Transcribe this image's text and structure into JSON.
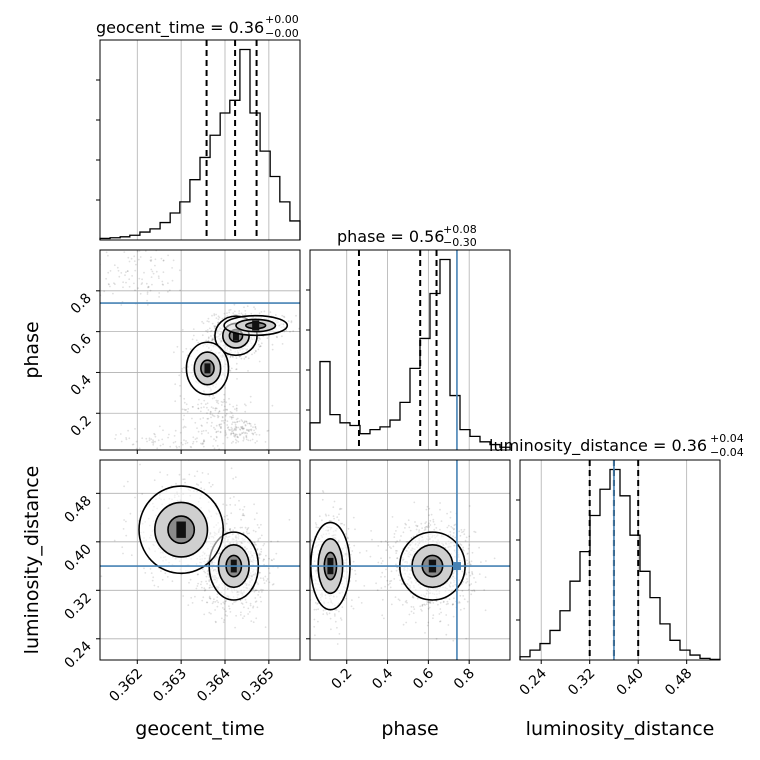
{
  "chart_data": {
    "type": "corner",
    "parameters": [
      "geocent_time",
      "phase",
      "luminosity_distance"
    ],
    "titles": [
      {
        "param": "geocent_time",
        "prefix": "geocent_time = ",
        "median": "0.36",
        "plus": "+0.00",
        "minus": "−0.00"
      },
      {
        "param": "phase",
        "prefix": "phase = ",
        "median": "0.56",
        "plus": "+0.08",
        "minus": "−0.30"
      },
      {
        "param": "luminosity_distance",
        "prefix": "luminosity_distance = ",
        "median": "0.36",
        "plus": "+0.04",
        "minus": "−0.04"
      }
    ],
    "axis_labels": {
      "x": [
        "geocent_time",
        "phase",
        "luminosity_distance"
      ],
      "y": [
        "phase",
        "luminosity_distance"
      ]
    },
    "ranges": {
      "geocent_time": [
        0.36115,
        0.36571
      ],
      "phase": [
        0.02,
        1.0
      ],
      "luminosity_distance": [
        0.205,
        0.535
      ]
    },
    "ticks": {
      "geocent_time": [
        0.362,
        0.363,
        0.364,
        0.365
      ],
      "phase": [
        0.2,
        0.4,
        0.6,
        0.8
      ],
      "luminosity_distance": [
        0.24,
        0.32,
        0.4,
        0.48
      ]
    },
    "tick_labels": {
      "geocent_time": [
        "0.362",
        "0.363",
        "0.364",
        "0.365"
      ],
      "phase_x": [
        "0.2",
        "0.4",
        "0.6",
        "0.8"
      ],
      "phase_y": [
        "0.2",
        "0.4",
        "0.6",
        "0.8"
      ],
      "luminosity_distance_x": [
        "0.24",
        "0.32",
        "0.40",
        "0.48"
      ],
      "luminosity_distance_y": [
        "0.24",
        "0.32",
        "0.40",
        "0.48"
      ]
    },
    "truths": {
      "phase": 0.74,
      "luminosity_distance": 0.36
    },
    "quantiles": {
      "geocent_time": [
        0.36358,
        0.36423,
        0.36472
      ],
      "phase": [
        0.26,
        0.56,
        0.64
      ],
      "luminosity_distance": [
        0.32,
        0.36,
        0.4
      ]
    },
    "histograms": {
      "geocent_time": {
        "edges": [
          0.36115,
          0.36138,
          0.36161,
          0.36183,
          0.36206,
          0.36229,
          0.36252,
          0.36275,
          0.36297,
          0.3632,
          0.36343,
          0.36366,
          0.36389,
          0.36411,
          0.36434,
          0.36457,
          0.3648,
          0.36503,
          0.36525,
          0.36548,
          0.36571
        ],
        "counts": [
          0.5,
          0.7,
          1.0,
          1.5,
          2.5,
          3.5,
          5.5,
          8.5,
          12,
          19,
          26,
          33,
          40,
          44,
          60,
          40,
          28,
          20,
          12,
          6
        ]
      },
      "phase": {
        "edges": [
          0.02,
          0.069,
          0.118,
          0.167,
          0.216,
          0.265,
          0.314,
          0.363,
          0.412,
          0.461,
          0.51,
          0.559,
          0.608,
          0.657,
          0.706,
          0.755,
          0.804,
          0.853,
          0.902,
          0.951,
          1.0
        ],
        "counts": [
          2,
          6.5,
          2.6,
          2.0,
          1.8,
          1.2,
          1.5,
          1.7,
          2.2,
          3.5,
          6.0,
          8.2,
          11.5,
          14.0,
          4.0,
          1.5,
          1.0,
          0.6,
          0.4,
          0.2
        ]
      },
      "luminosity_distance": {
        "edges": [
          0.205,
          0.2215,
          0.238,
          0.2545,
          0.271,
          0.2875,
          0.304,
          0.3205,
          0.337,
          0.3535,
          0.37,
          0.3865,
          0.403,
          0.4195,
          0.436,
          0.4525,
          0.469,
          0.4855,
          0.502,
          0.5185,
          0.535
        ],
        "counts": [
          1,
          3,
          5,
          9,
          15,
          24,
          33,
          44,
          52,
          58,
          50,
          38,
          27,
          19,
          11,
          6,
          3,
          1.5,
          0.5,
          0.2
        ]
      }
    },
    "posterior_clusters": {
      "geocent_time_vs_phase": [
        {
          "x": 0.36425,
          "y": 0.58,
          "sx": 0.0003,
          "sy": 0.06,
          "weight": 0.4
        },
        {
          "x": 0.3647,
          "y": 0.63,
          "sx": 0.00045,
          "sy": 0.03,
          "weight": 0.15
        },
        {
          "x": 0.3636,
          "y": 0.42,
          "sx": 0.0003,
          "sy": 0.08,
          "weight": 0.12
        },
        {
          "x": 0.3643,
          "y": 0.12,
          "sx": 0.0003,
          "sy": 0.03,
          "weight": 0.1
        },
        {
          "x": 0.362,
          "y": 0.88,
          "sx": 0.0006,
          "sy": 0.07,
          "weight": 0.08
        },
        {
          "x": 0.3638,
          "y": 0.22,
          "sx": 0.0004,
          "sy": 0.04,
          "weight": 0.07
        },
        {
          "x": 0.3629,
          "y": 0.06,
          "sx": 0.0009,
          "sy": 0.03,
          "weight": 0.08
        }
      ],
      "geocent_time_vs_luminosity_distance": [
        {
          "x": 0.3642,
          "y": 0.36,
          "sx": 0.00035,
          "sy": 0.035,
          "weight": 0.7
        },
        {
          "x": 0.363,
          "y": 0.42,
          "sx": 0.0006,
          "sy": 0.045,
          "weight": 0.3
        }
      ],
      "phase_vs_luminosity_distance": [
        {
          "x": 0.62,
          "y": 0.36,
          "sx": 0.1,
          "sy": 0.035,
          "weight": 0.7
        },
        {
          "x": 0.12,
          "y": 0.36,
          "sx": 0.06,
          "sy": 0.045,
          "weight": 0.3
        }
      ]
    },
    "colors": {
      "line": "#000000",
      "truth": "#4682b4",
      "grid": "#b0b0b0",
      "scatter": "#000000"
    },
    "grid": true
  }
}
